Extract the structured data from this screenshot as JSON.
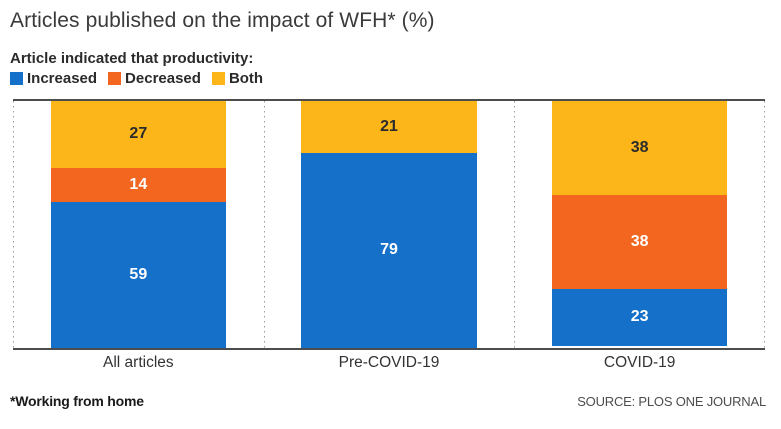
{
  "title": "Articles published on the impact of WFH* (%)",
  "legend": {
    "heading": "Article indicated that productivity:",
    "items": [
      {
        "label": "Increased",
        "color": "#1470C9"
      },
      {
        "label": "Decreased",
        "color": "#F2661F"
      },
      {
        "label": "Both",
        "color": "#FCB61A"
      }
    ]
  },
  "chart_data": {
    "type": "bar",
    "stacked": true,
    "orientation": "vertical",
    "title": "Articles published on the impact of WFH* (%)",
    "categories": [
      "All articles",
      "Pre-COVID-19",
      "COVID-19"
    ],
    "series": [
      {
        "name": "Increased",
        "color": "#1470C9",
        "values": [
          59,
          79,
          23
        ]
      },
      {
        "name": "Decreased",
        "color": "#F2661F",
        "values": [
          14,
          0,
          38
        ]
      },
      {
        "name": "Both",
        "color": "#FCB61A",
        "values": [
          27,
          21,
          38
        ]
      }
    ],
    "ylim": [
      0,
      100
    ],
    "grid": "dotted-vertical-separators",
    "legend_position": "top-left",
    "value_labels": true,
    "value_label_colors": {
      "Increased": "#ffffff",
      "Decreased": "#ffffff",
      "Both": "#2b2b2b"
    }
  },
  "footer": {
    "footnote": "*Working from home",
    "source": "SOURCE: PLOS ONE JOURNAL"
  },
  "colors": {
    "axis_line": "#4d4d4d",
    "separator_dotted": "#9a9a9a",
    "title_text": "#3a3a3a",
    "body_text": "#2b2b2b",
    "background": "#ffffff"
  }
}
